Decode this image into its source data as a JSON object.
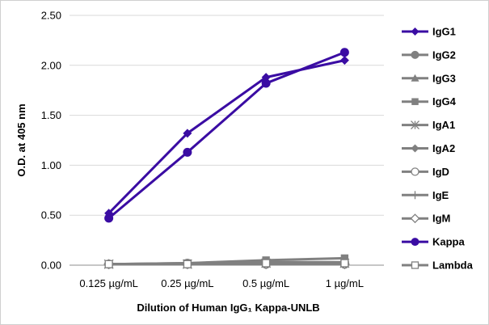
{
  "chart_data": {
    "type": "line",
    "title": "",
    "xlabel": "Dilution of Human IgG₁ Kappa-UNLB",
    "ylabel": "O.D. at 405 nm",
    "categories": [
      "0.125 µg/mL",
      "0.25 µg/mL",
      "0.5 µg/mL",
      "1 µg/mL"
    ],
    "ylim": [
      0,
      2.5
    ],
    "yticks": [
      "0.00",
      "0.50",
      "1.00",
      "1.50",
      "2.00",
      "2.50"
    ],
    "grid": true,
    "legend_position": "right",
    "series": [
      {
        "name": "IgG1",
        "marker": "diamond",
        "color": "#3a0ca3",
        "values": [
          0.52,
          1.32,
          1.88,
          2.05
        ]
      },
      {
        "name": "IgG2",
        "marker": "circle",
        "color": "#808080",
        "values": [
          0.01,
          0.02,
          0.03,
          0.03
        ]
      },
      {
        "name": "IgG3",
        "marker": "triangle",
        "color": "#808080",
        "values": [
          0.01,
          0.01,
          0.02,
          0.02
        ]
      },
      {
        "name": "IgG4",
        "marker": "square",
        "color": "#808080",
        "values": [
          0.01,
          0.02,
          0.05,
          0.07
        ]
      },
      {
        "name": "IgA1",
        "marker": "asterisk",
        "color": "#808080",
        "values": [
          0.01,
          0.01,
          0.02,
          0.02
        ]
      },
      {
        "name": "IgA2",
        "marker": "diamond",
        "color": "#808080",
        "values": [
          0.01,
          0.01,
          0.01,
          0.02
        ]
      },
      {
        "name": "IgD",
        "marker": "circle-open",
        "color": "#808080",
        "values": [
          0.01,
          0.01,
          0.01,
          0.01
        ]
      },
      {
        "name": "IgE",
        "marker": "plus",
        "color": "#808080",
        "values": [
          0.01,
          0.01,
          0.01,
          0.01
        ]
      },
      {
        "name": "IgM",
        "marker": "diamond-open",
        "color": "#808080",
        "values": [
          0.01,
          0.01,
          0.01,
          0.01
        ]
      },
      {
        "name": "Kappa",
        "marker": "circle",
        "color": "#3a0ca3",
        "values": [
          0.47,
          1.13,
          1.82,
          2.13
        ]
      },
      {
        "name": "Lambda",
        "marker": "square-open",
        "color": "#808080",
        "values": [
          0.01,
          0.01,
          0.02,
          0.02
        ]
      }
    ]
  }
}
